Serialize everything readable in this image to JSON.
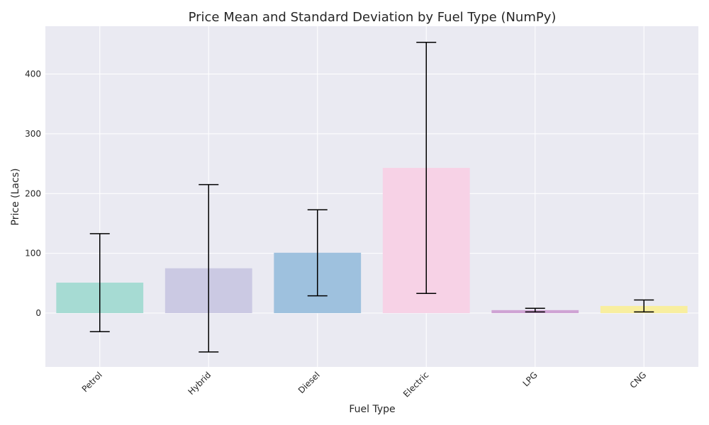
{
  "chart_data": {
    "type": "bar",
    "title": "Price Mean and Standard Deviation by Fuel Type (NumPy)",
    "xlabel": "Fuel Type",
    "ylabel": "Price (Lacs)",
    "categories": [
      "Petrol",
      "Hybrid",
      "Diesel",
      "Electric",
      "LPG",
      "CNG"
    ],
    "values": [
      51,
      75,
      101,
      243,
      5,
      12
    ],
    "std": [
      82,
      140,
      72,
      210,
      3,
      10
    ],
    "ylim": [
      -90,
      480
    ],
    "yticks": [
      0,
      100,
      200,
      300,
      400
    ],
    "grid": true,
    "bar_colors": [
      "#a6dbd3",
      "#cbc9e3",
      "#9ec1de",
      "#f7d2e6",
      "#cfa3d4",
      "#f8ee9f"
    ],
    "plot_background": "#eaeaf2"
  }
}
